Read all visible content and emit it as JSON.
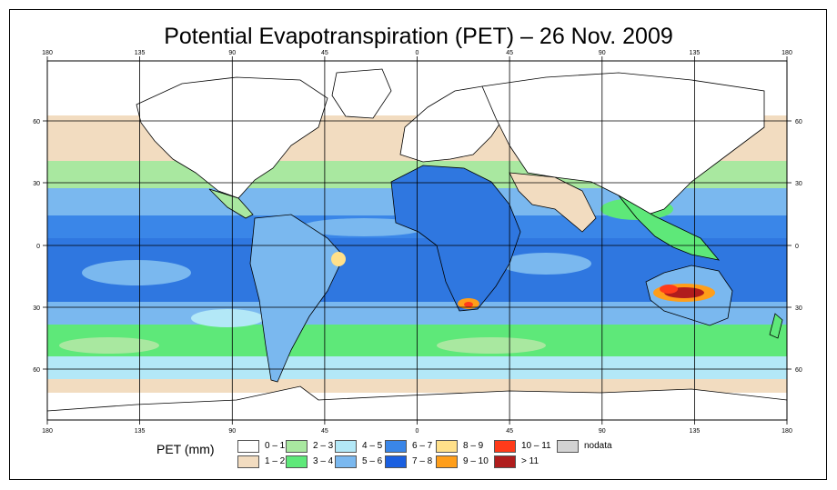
{
  "title": "Potential Evapotranspiration (PET) – 26 Nov. 2009",
  "map": {
    "lon_ticks": [
      "180",
      "135",
      "90",
      "45",
      "0",
      "45",
      "90",
      "135",
      "180"
    ],
    "lat_ticks": [
      "60",
      "30",
      "0",
      "30",
      "60"
    ],
    "colors": {
      "ocean_bg": "#2f77e0",
      "land": "#ffffff",
      "outline": "#000000",
      "grid": "#000000"
    }
  },
  "legend": {
    "title": "PET (mm)",
    "items": [
      {
        "label": "0 – 1",
        "color": "#ffffff"
      },
      {
        "label": "1 – 2",
        "color": "#f2dcc0"
      },
      {
        "label": "2 – 3",
        "color": "#a9e8a0"
      },
      {
        "label": "3 – 4",
        "color": "#5ee879"
      },
      {
        "label": "4 – 5",
        "color": "#b3e8f7"
      },
      {
        "label": "5 – 6",
        "color": "#7ab8ef"
      },
      {
        "label": "6 – 7",
        "color": "#3a86e8"
      },
      {
        "label": "7 – 8",
        "color": "#1a5fe0"
      },
      {
        "label": "8 – 9",
        "color": "#ffe08a"
      },
      {
        "label": "9 – 10",
        "color": "#ff9e1a"
      },
      {
        "label": "10 – 11",
        "color": "#ff3b1a"
      },
      {
        "label": "> 11",
        "color": "#b01d1d"
      },
      {
        "label": "nodata",
        "color": "#d3d3d3"
      }
    ]
  }
}
